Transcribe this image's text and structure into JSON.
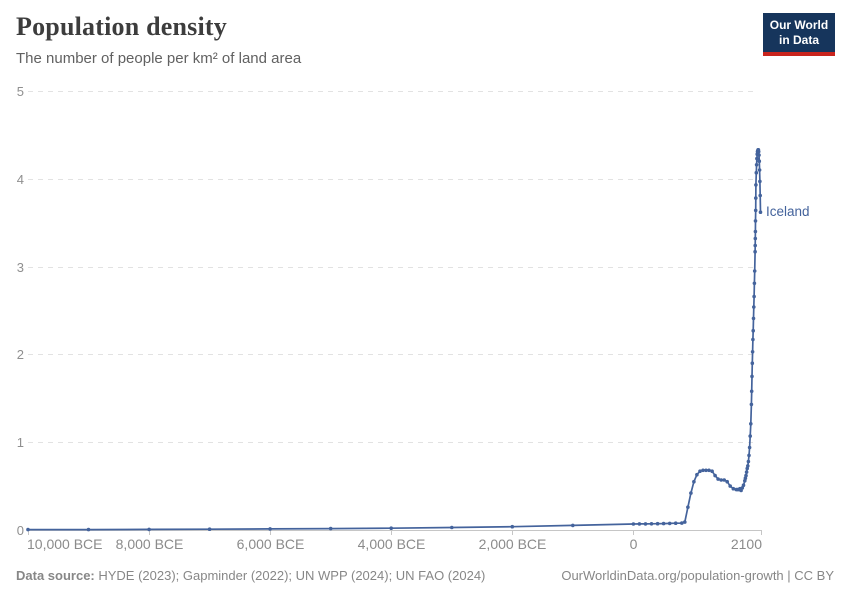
{
  "header": {
    "title": "Population density",
    "subtitle": "The number of people per km² of land area"
  },
  "logo": {
    "line1": "Our World",
    "line2": "in Data",
    "bg_color": "#16355c",
    "bar_color": "#c9241d"
  },
  "chart_data": {
    "type": "line",
    "title": "Population density",
    "xlabel": "",
    "ylabel": "People per km² of land area",
    "xlim": [
      -10000,
      2100
    ],
    "ylim": [
      0,
      5
    ],
    "grid": "dashed-horizontal",
    "x_ticks": [
      {
        "value": -10000,
        "label": "10,000 BCE"
      },
      {
        "value": -8000,
        "label": "8,000 BCE"
      },
      {
        "value": -6000,
        "label": "6,000 BCE"
      },
      {
        "value": -4000,
        "label": "4,000 BCE"
      },
      {
        "value": -2000,
        "label": "2,000 BCE"
      },
      {
        "value": 0,
        "label": "0"
      },
      {
        "value": 2100,
        "label": "2100"
      }
    ],
    "y_ticks": [
      {
        "value": 0,
        "label": "0"
      },
      {
        "value": 1,
        "label": "1"
      },
      {
        "value": 2,
        "label": "2"
      },
      {
        "value": 3,
        "label": "3"
      },
      {
        "value": 4,
        "label": "4"
      },
      {
        "value": 5,
        "label": "5"
      }
    ],
    "series": [
      {
        "name": "Iceland",
        "color": "#44639c",
        "end_label": "Iceland",
        "points": [
          [
            -10000,
            0.004
          ],
          [
            -9000,
            0.005
          ],
          [
            -8000,
            0.007
          ],
          [
            -7000,
            0.009
          ],
          [
            -6000,
            0.012
          ],
          [
            -5000,
            0.016
          ],
          [
            -4000,
            0.021
          ],
          [
            -3000,
            0.028
          ],
          [
            -2000,
            0.038
          ],
          [
            -1000,
            0.052
          ],
          [
            0,
            0.068
          ],
          [
            100,
            0.069
          ],
          [
            200,
            0.07
          ],
          [
            300,
            0.071
          ],
          [
            400,
            0.072
          ],
          [
            500,
            0.073
          ],
          [
            600,
            0.075
          ],
          [
            700,
            0.077
          ],
          [
            800,
            0.079
          ],
          [
            850,
            0.09
          ],
          [
            900,
            0.26
          ],
          [
            950,
            0.42
          ],
          [
            1000,
            0.55
          ],
          [
            1050,
            0.63
          ],
          [
            1100,
            0.67
          ],
          [
            1150,
            0.68
          ],
          [
            1200,
            0.68
          ],
          [
            1250,
            0.68
          ],
          [
            1300,
            0.67
          ],
          [
            1350,
            0.62
          ],
          [
            1400,
            0.58
          ],
          [
            1450,
            0.57
          ],
          [
            1500,
            0.57
          ],
          [
            1550,
            0.55
          ],
          [
            1600,
            0.5
          ],
          [
            1650,
            0.47
          ],
          [
            1700,
            0.46
          ],
          [
            1720,
            0.46
          ],
          [
            1740,
            0.46
          ],
          [
            1760,
            0.47
          ],
          [
            1780,
            0.45
          ],
          [
            1800,
            0.48
          ],
          [
            1820,
            0.51
          ],
          [
            1840,
            0.56
          ],
          [
            1850,
            0.59
          ],
          [
            1860,
            0.62
          ],
          [
            1870,
            0.66
          ],
          [
            1880,
            0.7
          ],
          [
            1890,
            0.73
          ],
          [
            1900,
            0.78
          ],
          [
            1910,
            0.85
          ],
          [
            1920,
            0.94
          ],
          [
            1930,
            1.07
          ],
          [
            1940,
            1.21
          ],
          [
            1950,
            1.43
          ],
          [
            1955,
            1.58
          ],
          [
            1960,
            1.75
          ],
          [
            1965,
            1.9
          ],
          [
            1970,
            2.03
          ],
          [
            1975,
            2.17
          ],
          [
            1980,
            2.27
          ],
          [
            1985,
            2.41
          ],
          [
            1990,
            2.54
          ],
          [
            1995,
            2.66
          ],
          [
            2000,
            2.81
          ],
          [
            2005,
            2.95
          ],
          [
            2010,
            3.17
          ],
          [
            2012,
            3.24
          ],
          [
            2014,
            3.32
          ],
          [
            2016,
            3.4
          ],
          [
            2018,
            3.52
          ],
          [
            2020,
            3.64
          ],
          [
            2022,
            3.78
          ],
          [
            2024,
            3.93
          ],
          [
            2030,
            4.07
          ],
          [
            2035,
            4.16
          ],
          [
            2040,
            4.23
          ],
          [
            2045,
            4.28
          ],
          [
            2050,
            4.31
          ],
          [
            2055,
            4.32
          ],
          [
            2060,
            4.33
          ],
          [
            2065,
            4.33
          ],
          [
            2070,
            4.31
          ],
          [
            2075,
            4.27
          ],
          [
            2080,
            4.2
          ],
          [
            2085,
            4.1
          ],
          [
            2090,
            3.97
          ],
          [
            2095,
            3.81
          ],
          [
            2100,
            3.62
          ]
        ]
      }
    ]
  },
  "footer": {
    "source_label": "Data source:",
    "sources": " HYDE (2023); Gapminder (2022); UN WPP (2024); UN FAO (2024)",
    "credit": "OurWorldinData.org/population-growth | CC BY"
  }
}
